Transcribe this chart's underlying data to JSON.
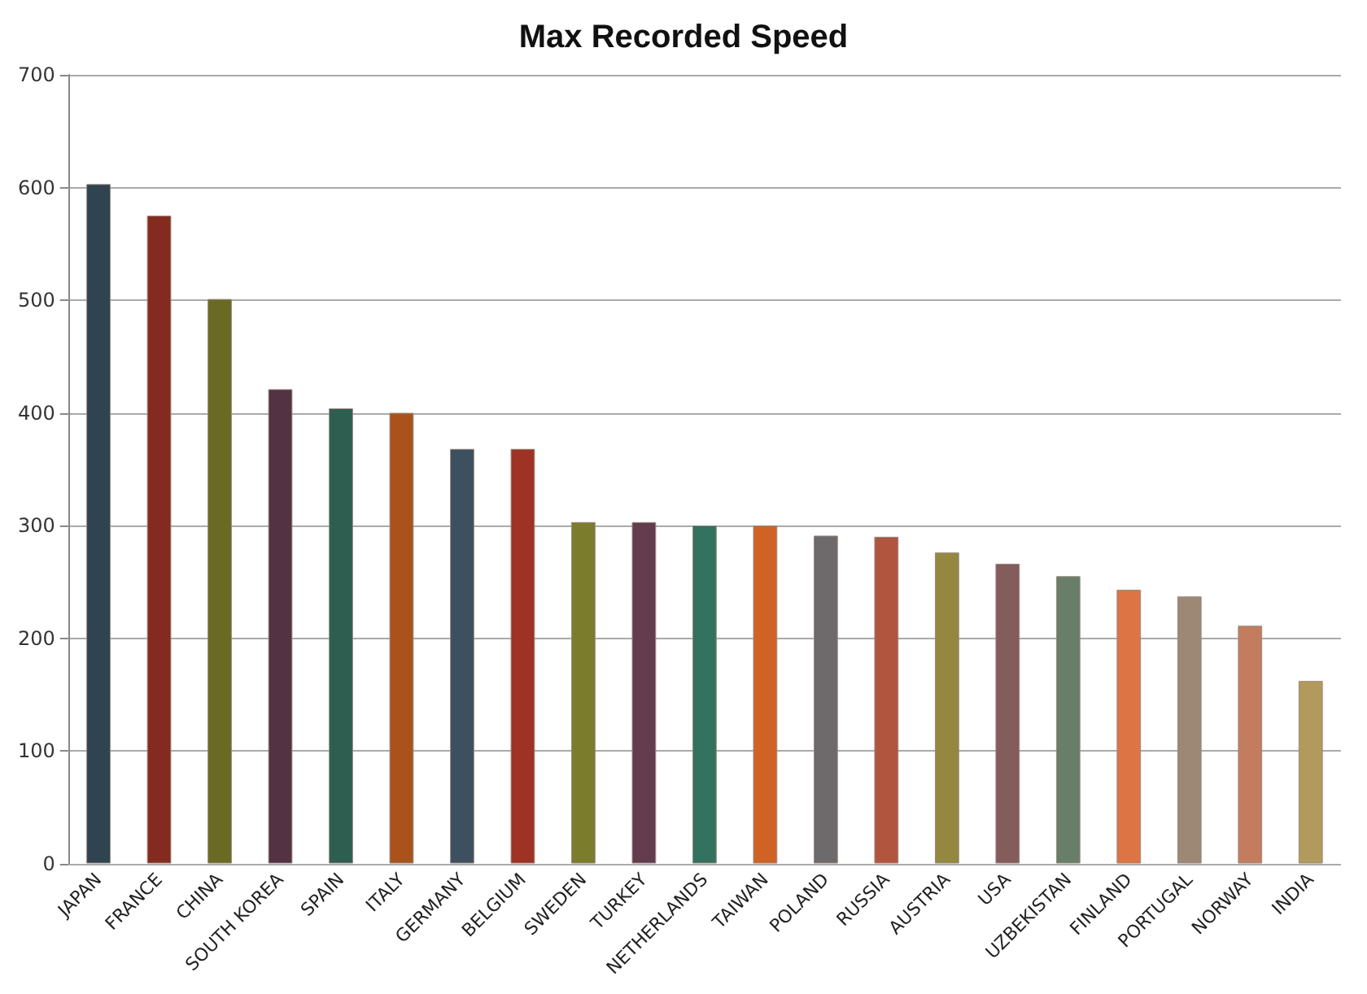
{
  "chart_data": {
    "type": "bar",
    "title": "Max Recorded Speed",
    "categories": [
      "JAPAN",
      "FRANCE",
      "CHINA",
      "SOUTH KOREA",
      "SPAIN",
      "ITALY",
      "GERMANY",
      "BELGIUM",
      "SWEDEN",
      "TURKEY",
      "NETHERLANDS",
      "TAIWAN",
      "POLAND",
      "RUSSIA",
      "AUSTRIA",
      "USA",
      "UZBEKISTAN",
      "FINLAND",
      "PORTUGAL",
      "NORWAY",
      "INDIA"
    ],
    "values": [
      603,
      575,
      501,
      421,
      404,
      400,
      368,
      368,
      303,
      303,
      300,
      300,
      291,
      290,
      276,
      266,
      255,
      243,
      237,
      211,
      162
    ],
    "colors": [
      "#2f4350",
      "#842b20",
      "#6b6a24",
      "#533244",
      "#2e5e50",
      "#a9521b",
      "#3d5060",
      "#9e3224",
      "#7b7c2c",
      "#633c4e",
      "#33725f",
      "#cf6325",
      "#6c6a6a",
      "#b2553f",
      "#94873f",
      "#845c5b",
      "#687e68",
      "#dc7443",
      "#9d8775",
      "#c37d5e",
      "#b2995c"
    ],
    "ylim": [
      0,
      700
    ],
    "yticks": [
      0,
      100,
      200,
      300,
      400,
      500,
      600,
      700
    ],
    "grid": "y"
  }
}
